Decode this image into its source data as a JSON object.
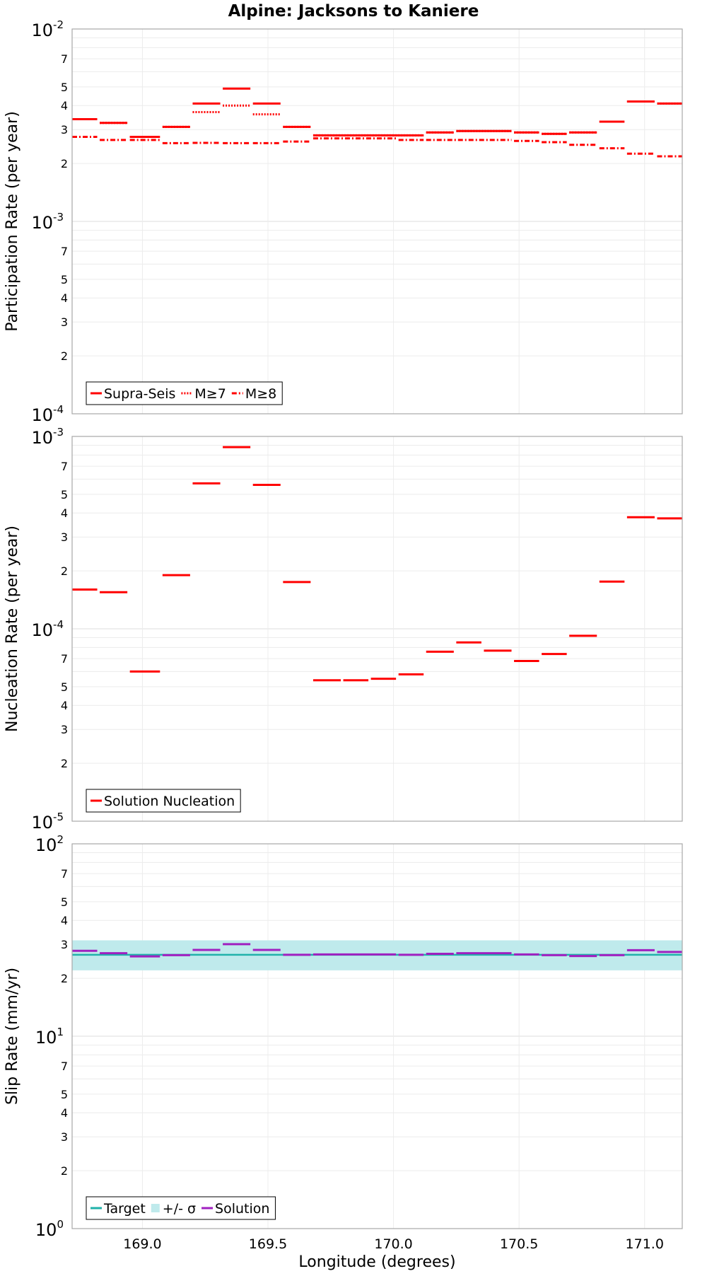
{
  "chart_data": [
    {
      "type": "step",
      "title": "Alpine: Jacksons to Kaniere",
      "xlabel": "",
      "ylabel": "Participation Rate (per year)",
      "yscale": "log",
      "ylim": [
        0.0001,
        0.01
      ],
      "xlim": [
        168.72,
        171.15
      ],
      "legend_position": "bottom-left",
      "legend": [
        "Supra-Seis",
        "M≥7",
        "M≥8"
      ],
      "colors": {
        "Supra-Seis": "#ff0000",
        "M≥7": "#ff0000",
        "M≥8": "#ff0000"
      },
      "series": [
        {
          "name": "Supra-Seis",
          "style": "solid",
          "segments": [
            {
              "x0": 168.72,
              "x1": 168.82,
              "y": 0.0034
            },
            {
              "x0": 168.83,
              "x1": 168.94,
              "y": 0.00325
            },
            {
              "x0": 168.95,
              "x1": 169.07,
              "y": 0.00275
            },
            {
              "x0": 169.08,
              "x1": 169.19,
              "y": 0.0031
            },
            {
              "x0": 169.2,
              "x1": 169.31,
              "y": 0.0041
            },
            {
              "x0": 169.32,
              "x1": 169.43,
              "y": 0.0049
            },
            {
              "x0": 169.44,
              "x1": 169.55,
              "y": 0.0041
            },
            {
              "x0": 169.56,
              "x1": 169.67,
              "y": 0.0031
            },
            {
              "x0": 169.68,
              "x1": 170.12,
              "y": 0.0028
            },
            {
              "x0": 170.13,
              "x1": 170.24,
              "y": 0.0029
            },
            {
              "x0": 170.25,
              "x1": 170.47,
              "y": 0.00295
            },
            {
              "x0": 170.48,
              "x1": 170.58,
              "y": 0.0029
            },
            {
              "x0": 170.59,
              "x1": 170.69,
              "y": 0.00285
            },
            {
              "x0": 170.7,
              "x1": 170.81,
              "y": 0.0029
            },
            {
              "x0": 170.82,
              "x1": 170.92,
              "y": 0.0033
            },
            {
              "x0": 170.93,
              "x1": 171.04,
              "y": 0.0042
            },
            {
              "x0": 171.05,
              "x1": 171.15,
              "y": 0.0041
            }
          ]
        },
        {
          "name": "M≥7",
          "style": "dotted",
          "segments": [
            {
              "x0": 168.72,
              "x1": 168.82,
              "y": 0.0034
            },
            {
              "x0": 168.83,
              "x1": 168.94,
              "y": 0.00325
            },
            {
              "x0": 168.95,
              "x1": 169.07,
              "y": 0.00275
            },
            {
              "x0": 169.08,
              "x1": 169.19,
              "y": 0.0031
            },
            {
              "x0": 169.2,
              "x1": 169.31,
              "y": 0.0037
            },
            {
              "x0": 169.32,
              "x1": 169.43,
              "y": 0.004
            },
            {
              "x0": 169.44,
              "x1": 169.55,
              "y": 0.0036
            },
            {
              "x0": 169.56,
              "x1": 169.67,
              "y": 0.0031
            },
            {
              "x0": 169.68,
              "x1": 170.12,
              "y": 0.0028
            },
            {
              "x0": 170.13,
              "x1": 170.24,
              "y": 0.0029
            },
            {
              "x0": 170.25,
              "x1": 170.47,
              "y": 0.00295
            },
            {
              "x0": 170.48,
              "x1": 170.58,
              "y": 0.0029
            },
            {
              "x0": 170.59,
              "x1": 170.69,
              "y": 0.00285
            },
            {
              "x0": 170.7,
              "x1": 170.81,
              "y": 0.0029
            },
            {
              "x0": 170.82,
              "x1": 170.92,
              "y": 0.0033
            },
            {
              "x0": 170.93,
              "x1": 171.04,
              "y": 0.0042
            },
            {
              "x0": 171.05,
              "x1": 171.15,
              "y": 0.0041
            }
          ]
        },
        {
          "name": "M≥8",
          "style": "dashdot",
          "segments": [
            {
              "x0": 168.72,
              "x1": 168.82,
              "y": 0.00275
            },
            {
              "x0": 168.83,
              "x1": 168.94,
              "y": 0.00265
            },
            {
              "x0": 168.95,
              "x1": 169.07,
              "y": 0.00265
            },
            {
              "x0": 169.08,
              "x1": 169.19,
              "y": 0.00255
            },
            {
              "x0": 169.2,
              "x1": 169.31,
              "y": 0.00256
            },
            {
              "x0": 169.32,
              "x1": 169.43,
              "y": 0.00255
            },
            {
              "x0": 169.44,
              "x1": 169.55,
              "y": 0.00255
            },
            {
              "x0": 169.56,
              "x1": 169.67,
              "y": 0.0026
            },
            {
              "x0": 169.68,
              "x1": 170.01,
              "y": 0.0027
            },
            {
              "x0": 170.02,
              "x1": 170.12,
              "y": 0.00265
            },
            {
              "x0": 170.13,
              "x1": 170.47,
              "y": 0.00265
            },
            {
              "x0": 170.48,
              "x1": 170.58,
              "y": 0.00262
            },
            {
              "x0": 170.59,
              "x1": 170.69,
              "y": 0.00258
            },
            {
              "x0": 170.7,
              "x1": 170.81,
              "y": 0.0025
            },
            {
              "x0": 170.82,
              "x1": 170.92,
              "y": 0.0024
            },
            {
              "x0": 170.93,
              "x1": 171.04,
              "y": 0.00225
            },
            {
              "x0": 171.05,
              "x1": 171.15,
              "y": 0.00218
            }
          ]
        }
      ]
    },
    {
      "type": "step",
      "xlabel": "",
      "ylabel": "Nucleation Rate (per year)",
      "yscale": "log",
      "ylim": [
        1e-05,
        0.001
      ],
      "xlim": [
        168.72,
        171.15
      ],
      "legend_position": "bottom-left",
      "legend": [
        "Solution Nucleation"
      ],
      "colors": {
        "Solution Nucleation": "#ff0000"
      },
      "series": [
        {
          "name": "Solution Nucleation",
          "style": "solid",
          "segments": [
            {
              "x0": 168.72,
              "x1": 168.82,
              "y": 0.00016
            },
            {
              "x0": 168.83,
              "x1": 168.94,
              "y": 0.000155
            },
            {
              "x0": 168.95,
              "x1": 169.07,
              "y": 6e-05
            },
            {
              "x0": 169.08,
              "x1": 169.19,
              "y": 0.00019
            },
            {
              "x0": 169.2,
              "x1": 169.31,
              "y": 0.00057
            },
            {
              "x0": 169.32,
              "x1": 169.43,
              "y": 0.00088
            },
            {
              "x0": 169.44,
              "x1": 169.55,
              "y": 0.00056
            },
            {
              "x0": 169.56,
              "x1": 169.67,
              "y": 0.000175
            },
            {
              "x0": 169.68,
              "x1": 169.79,
              "y": 5.4e-05
            },
            {
              "x0": 169.8,
              "x1": 169.9,
              "y": 5.4e-05
            },
            {
              "x0": 169.91,
              "x1": 170.01,
              "y": 5.5e-05
            },
            {
              "x0": 170.02,
              "x1": 170.12,
              "y": 5.8e-05
            },
            {
              "x0": 170.13,
              "x1": 170.24,
              "y": 7.6e-05
            },
            {
              "x0": 170.25,
              "x1": 170.35,
              "y": 8.5e-05
            },
            {
              "x0": 170.36,
              "x1": 170.47,
              "y": 7.7e-05
            },
            {
              "x0": 170.48,
              "x1": 170.58,
              "y": 6.8e-05
            },
            {
              "x0": 170.59,
              "x1": 170.69,
              "y": 7.4e-05
            },
            {
              "x0": 170.7,
              "x1": 170.81,
              "y": 9.2e-05
            },
            {
              "x0": 170.82,
              "x1": 170.92,
              "y": 0.000176
            },
            {
              "x0": 170.93,
              "x1": 171.04,
              "y": 0.00038
            },
            {
              "x0": 171.05,
              "x1": 171.15,
              "y": 0.000375
            }
          ]
        }
      ]
    },
    {
      "type": "step",
      "xlabel": "Longitude (degrees)",
      "ylabel": "Slip Rate (mm/yr)",
      "yscale": "log",
      "ylim": [
        1,
        100
      ],
      "xlim": [
        168.72,
        171.15
      ],
      "x_ticks": [
        "169.0",
        "169.5",
        "170.0",
        "170.5",
        "171.0"
      ],
      "legend_position": "bottom-left",
      "legend": [
        "Target",
        "+/- σ",
        "Solution"
      ],
      "colors": {
        "Target": "#20b2aa",
        "+/- σ": "#bfeaec",
        "Solution": "#a020c0"
      },
      "band": {
        "name": "+/- σ",
        "low": 22,
        "high": 31.5
      },
      "series": [
        {
          "name": "Target",
          "style": "solid",
          "segments": [
            {
              "x0": 168.72,
              "x1": 171.15,
              "y": 26.5
            }
          ]
        },
        {
          "name": "Solution",
          "style": "solid",
          "segments": [
            {
              "x0": 168.72,
              "x1": 168.82,
              "y": 27.8
            },
            {
              "x0": 168.83,
              "x1": 168.94,
              "y": 27.0
            },
            {
              "x0": 168.95,
              "x1": 169.07,
              "y": 26.0
            },
            {
              "x0": 169.08,
              "x1": 169.19,
              "y": 26.4
            },
            {
              "x0": 169.2,
              "x1": 169.31,
              "y": 28.1
            },
            {
              "x0": 169.32,
              "x1": 169.43,
              "y": 30.1
            },
            {
              "x0": 169.44,
              "x1": 169.55,
              "y": 28.1
            },
            {
              "x0": 169.56,
              "x1": 169.67,
              "y": 26.5
            },
            {
              "x0": 169.68,
              "x1": 170.01,
              "y": 26.6
            },
            {
              "x0": 170.02,
              "x1": 170.12,
              "y": 26.5
            },
            {
              "x0": 170.13,
              "x1": 170.24,
              "y": 26.8
            },
            {
              "x0": 170.25,
              "x1": 170.47,
              "y": 27.0
            },
            {
              "x0": 170.48,
              "x1": 170.58,
              "y": 26.6
            },
            {
              "x0": 170.59,
              "x1": 170.69,
              "y": 26.4
            },
            {
              "x0": 170.7,
              "x1": 170.81,
              "y": 26.1
            },
            {
              "x0": 170.82,
              "x1": 170.92,
              "y": 26.4
            },
            {
              "x0": 170.93,
              "x1": 171.04,
              "y": 28.0
            },
            {
              "x0": 171.05,
              "x1": 171.15,
              "y": 27.4
            }
          ]
        }
      ]
    }
  ]
}
